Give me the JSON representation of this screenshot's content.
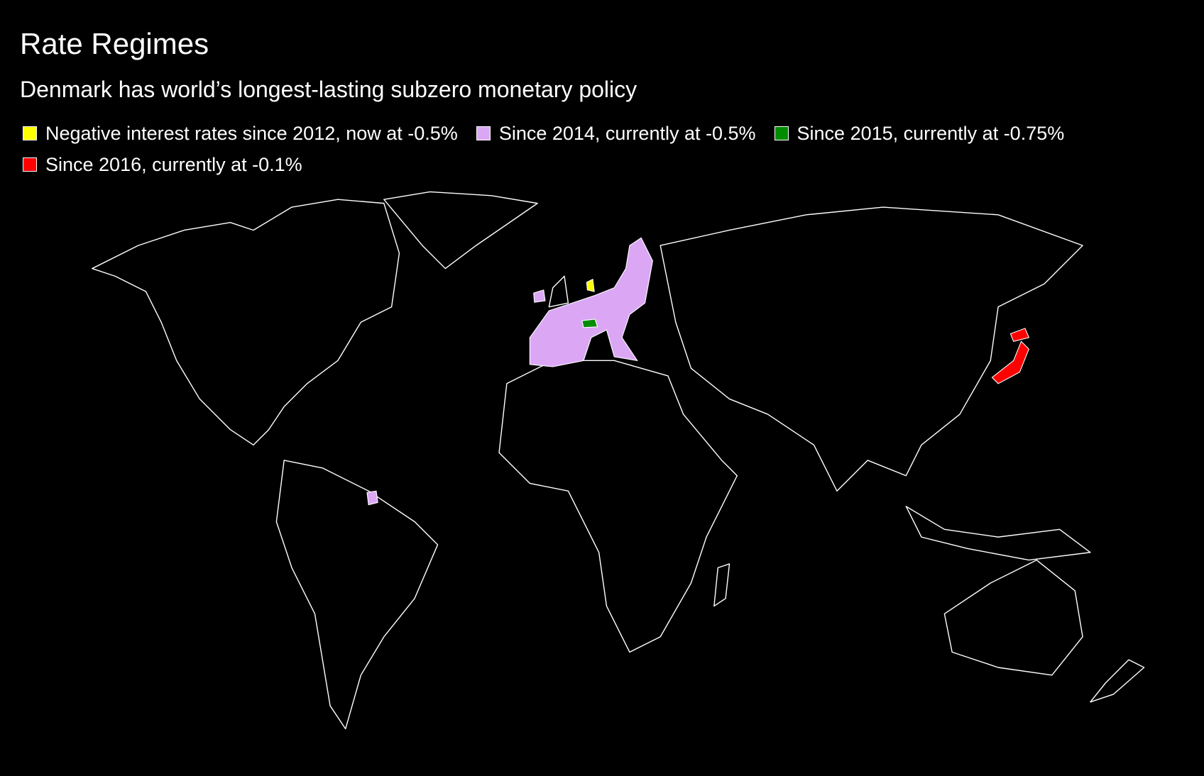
{
  "title": "Rate Regimes",
  "subtitle": "Denmark has world’s longest-lasting subzero monetary policy",
  "legend": [
    {
      "label": "Negative interest rates since 2012, now at -0.5%",
      "color": "#ffff00"
    },
    {
      "label": "Since 2014, currently at -0.5%",
      "color": "#dba7f5"
    },
    {
      "label": "Since 2015, currently at -0.75%",
      "color": "#008c00"
    },
    {
      "label": "Since 2016, currently at -0.1%",
      "color": "#ff0000"
    }
  ]
}
